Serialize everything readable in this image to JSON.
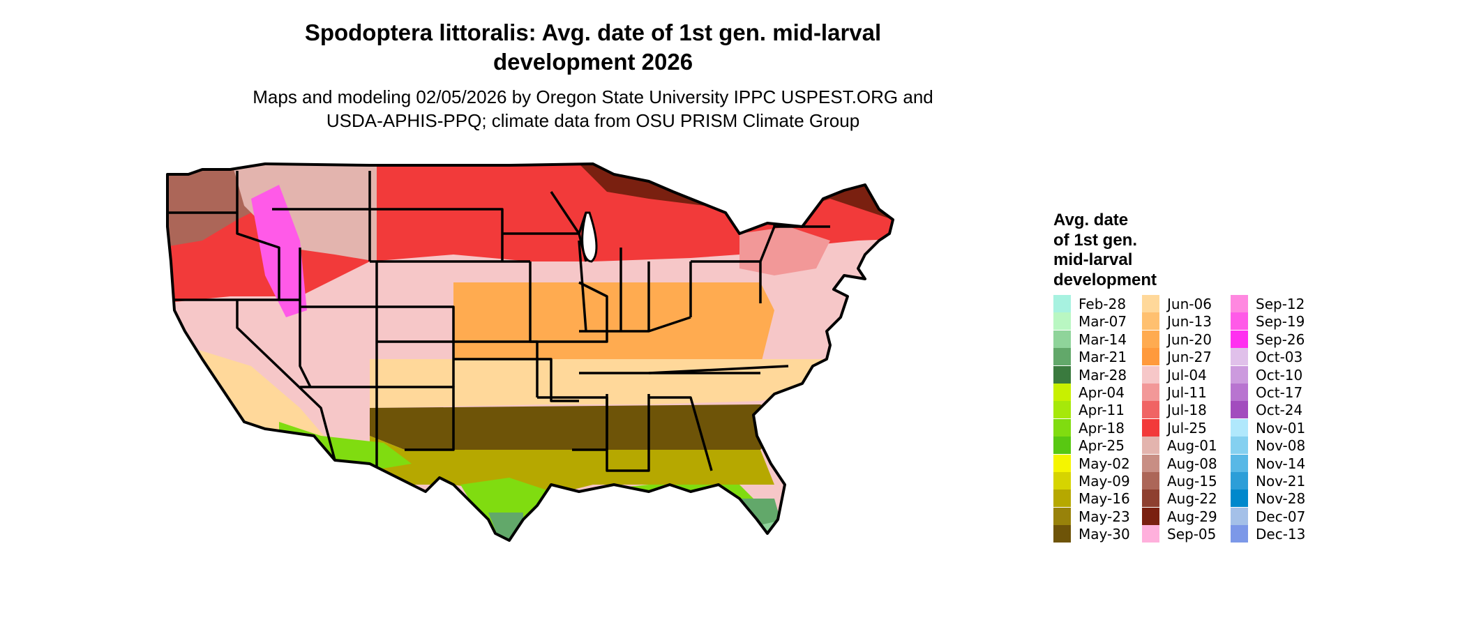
{
  "header": {
    "title_line1": "Spodoptera littoralis: Avg. date of 1st gen. mid-larval",
    "title_line2": "development 2026",
    "subtitle_line1": "Maps and modeling 02/05/2026 by Oregon State University IPPC USPEST.ORG and",
    "subtitle_line2": "USDA-APHIS-PPQ; climate data from OSU PRISM Climate Group"
  },
  "legend": {
    "title_lines": [
      "Avg. date",
      "of 1st gen.",
      "mid-larval",
      "development"
    ],
    "items": [
      {
        "label": "Feb-28",
        "color": "#a7f2e0"
      },
      {
        "label": "Mar-07",
        "color": "#b9f7c2"
      },
      {
        "label": "Mar-14",
        "color": "#8fd49a"
      },
      {
        "label": "Mar-21",
        "color": "#62a86a"
      },
      {
        "label": "Mar-28",
        "color": "#3a7a3e"
      },
      {
        "label": "Apr-04",
        "color": "#c8f000"
      },
      {
        "label": "Apr-11",
        "color": "#a6e80a"
      },
      {
        "label": "Apr-18",
        "color": "#80dc10"
      },
      {
        "label": "Apr-25",
        "color": "#58c812"
      },
      {
        "label": "May-02",
        "color": "#f5f500"
      },
      {
        "label": "May-09",
        "color": "#d6d400"
      },
      {
        "label": "May-16",
        "color": "#b6a800"
      },
      {
        "label": "May-23",
        "color": "#98820a"
      },
      {
        "label": "May-30",
        "color": "#6e5408"
      },
      {
        "label": "Jun-06",
        "color": "#ffd89a"
      },
      {
        "label": "Jun-13",
        "color": "#ffc070"
      },
      {
        "label": "Jun-20",
        "color": "#ffab50"
      },
      {
        "label": "Jun-27",
        "color": "#ff9a3c"
      },
      {
        "label": "Jul-04",
        "color": "#f6c7c8"
      },
      {
        "label": "Jul-11",
        "color": "#f29898"
      },
      {
        "label": "Jul-18",
        "color": "#f06464"
      },
      {
        "label": "Jul-25",
        "color": "#f23a3a"
      },
      {
        "label": "Aug-01",
        "color": "#e3b4ae"
      },
      {
        "label": "Aug-08",
        "color": "#c88e84"
      },
      {
        "label": "Aug-15",
        "color": "#ac6658"
      },
      {
        "label": "Aug-22",
        "color": "#8e4030"
      },
      {
        "label": "Aug-29",
        "color": "#7a2010"
      },
      {
        "label": "Sep-05",
        "color": "#ffb0dc"
      },
      {
        "label": "Sep-12",
        "color": "#ff88e0"
      },
      {
        "label": "Sep-19",
        "color": "#ff5ae8"
      },
      {
        "label": "Sep-26",
        "color": "#ff30f0"
      },
      {
        "label": "Oct-03",
        "color": "#e0c0ea"
      },
      {
        "label": "Oct-10",
        "color": "#cc9ade"
      },
      {
        "label": "Oct-17",
        "color": "#b874d0"
      },
      {
        "label": "Oct-24",
        "color": "#a24cbe"
      },
      {
        "label": "Nov-01",
        "color": "#b0e8fc"
      },
      {
        "label": "Nov-08",
        "color": "#84d0f0"
      },
      {
        "label": "Nov-14",
        "color": "#58b8e6"
      },
      {
        "label": "Nov-21",
        "color": "#2c9ed8"
      },
      {
        "label": "Nov-28",
        "color": "#0088cc"
      },
      {
        "label": "Dec-07",
        "color": "#a4c0e8"
      },
      {
        "label": "Dec-13",
        "color": "#7c98e8"
      }
    ]
  },
  "map": {
    "zones": [
      "May-30",
      "May-16",
      "Apr-18",
      "Jun-20",
      "Jul-11",
      "Jul-25",
      "Aug-15",
      "Aug-29"
    ],
    "zone_colors": {
      "Mar-14": "#8fd49a",
      "Mar-21": "#62a86a",
      "Apr-18": "#80dc10",
      "May-16": "#b6a800",
      "May-30": "#6e5408",
      "Jun-06": "#ffd89a",
      "Jun-20": "#ffab50",
      "Jul-04": "#f6c7c8",
      "Jul-11": "#f29898",
      "Jul-25": "#f23a3a",
      "Aug-01": "#e3b4ae",
      "Aug-15": "#ac6658",
      "Aug-29": "#7a2010",
      "Sep-19": "#ff5ae8"
    }
  }
}
